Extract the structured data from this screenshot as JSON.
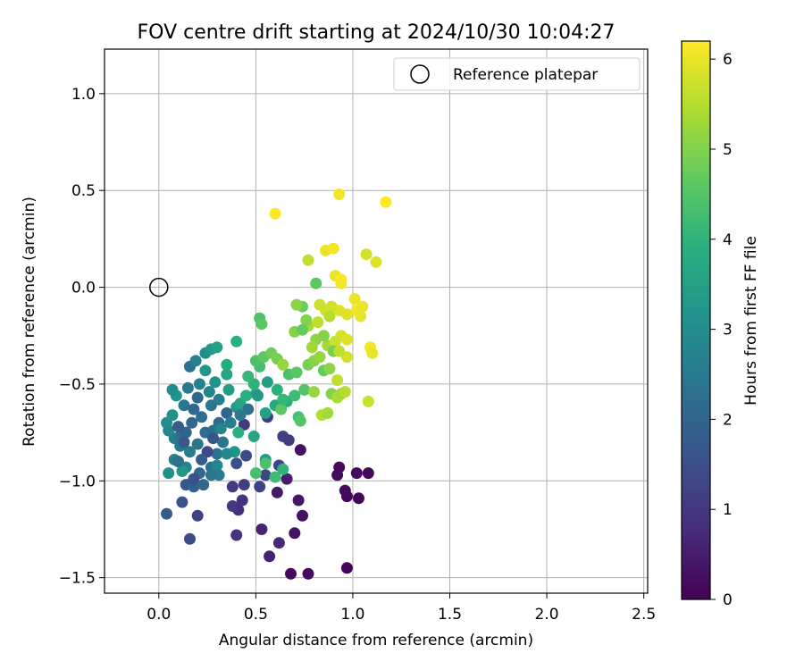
{
  "chart_data": {
    "type": "scatter",
    "title": "FOV centre drift starting at 2024/10/30 10:04:27",
    "xlabel": "Angular distance from reference (arcmin)",
    "ylabel": "Rotation from reference (arcmin)",
    "xlim": [
      -0.28,
      2.52
    ],
    "ylim": [
      -1.58,
      1.23
    ],
    "x_ticks": [
      0.0,
      0.5,
      1.0,
      1.5,
      2.0,
      2.5
    ],
    "x_tick_labels": [
      "0.0",
      "0.5",
      "1.0",
      "1.5",
      "2.0",
      "2.5"
    ],
    "y_ticks": [
      -1.5,
      -1.0,
      -0.5,
      0.0,
      0.5,
      1.0
    ],
    "y_tick_labels": [
      "−1.5",
      "−1.0",
      "−0.5",
      "0.0",
      "0.5",
      "1.0"
    ],
    "grid": true,
    "legend": {
      "placement": "top-right",
      "entries": [
        {
          "label": "Reference platepar",
          "marker": "open-circle",
          "x": 0.0,
          "y": 0.0
        }
      ]
    },
    "colorbar": {
      "label": "Hours from first FF file",
      "range": [
        0,
        6.2
      ],
      "ticks": [
        0,
        1,
        2,
        3,
        4,
        5,
        6
      ],
      "tick_labels": [
        "0",
        "1",
        "2",
        "3",
        "4",
        "5",
        "6"
      ],
      "colormap": "viridis"
    },
    "series": [
      {
        "color_by": "hours",
        "points": [
          [
            0.97,
            -1.45,
            0.05
          ],
          [
            0.68,
            -1.48,
            0.15
          ],
          [
            0.77,
            -1.48,
            0.2
          ],
          [
            0.7,
            -1.27,
            0.3
          ],
          [
            0.74,
            -1.18,
            0.3
          ],
          [
            0.72,
            -1.1,
            0.35
          ],
          [
            0.61,
            -1.06,
            0.4
          ],
          [
            0.97,
            -1.08,
            0.1
          ],
          [
            1.03,
            -1.09,
            0.1
          ],
          [
            0.96,
            -1.05,
            0.15
          ],
          [
            0.92,
            -0.97,
            0.2
          ],
          [
            0.93,
            -0.93,
            0.2
          ],
          [
            1.02,
            -0.96,
            0.15
          ],
          [
            1.08,
            -0.96,
            0.15
          ],
          [
            0.73,
            -0.84,
            0.3
          ],
          [
            0.66,
            -0.99,
            0.5
          ],
          [
            0.57,
            -1.39,
            0.6
          ],
          [
            0.53,
            -1.25,
            0.6
          ],
          [
            0.62,
            -1.32,
            0.7
          ],
          [
            0.4,
            -1.28,
            0.9
          ],
          [
            0.43,
            -1.1,
            0.9
          ],
          [
            0.41,
            -1.15,
            0.8
          ],
          [
            0.38,
            -1.13,
            1.0
          ],
          [
            0.38,
            -1.03,
            1.0
          ],
          [
            0.44,
            -1.02,
            1.1
          ],
          [
            0.52,
            -1.03,
            1.2
          ],
          [
            0.55,
            -0.97,
            1.3
          ],
          [
            0.62,
            -0.92,
            1.3
          ],
          [
            0.64,
            -0.77,
            1.2
          ],
          [
            0.67,
            -0.79,
            1.1
          ],
          [
            0.44,
            -0.71,
            1.0
          ],
          [
            0.56,
            -0.67,
            1.1
          ],
          [
            0.45,
            -0.87,
            1.4
          ],
          [
            0.4,
            -0.91,
            1.5
          ],
          [
            0.2,
            -1.18,
            1.2
          ],
          [
            0.16,
            -1.3,
            1.4
          ],
          [
            0.12,
            -1.11,
            1.6
          ],
          [
            0.04,
            -1.17,
            1.8
          ],
          [
            0.14,
            -1.02,
            1.7
          ],
          [
            0.18,
            -1.03,
            1.9
          ],
          [
            0.23,
            -1.02,
            2.0
          ],
          [
            0.21,
            -0.96,
            2.1
          ],
          [
            0.27,
            -0.93,
            2.2
          ],
          [
            0.3,
            -0.86,
            2.3
          ],
          [
            0.33,
            -0.8,
            2.4
          ],
          [
            0.28,
            -0.74,
            2.3
          ],
          [
            0.24,
            -0.75,
            2.2
          ],
          [
            0.2,
            -0.81,
            2.4
          ],
          [
            0.16,
            -0.85,
            2.6
          ],
          [
            0.11,
            -0.82,
            2.5
          ],
          [
            0.08,
            -0.78,
            2.6
          ],
          [
            0.05,
            -0.74,
            2.8
          ],
          [
            0.04,
            -0.7,
            3.0
          ],
          [
            0.07,
            -0.66,
            3.1
          ],
          [
            0.09,
            -0.56,
            3.2
          ],
          [
            0.07,
            -0.53,
            3.0
          ],
          [
            0.13,
            -0.61,
            2.4
          ],
          [
            0.18,
            -0.63,
            2.1
          ],
          [
            0.22,
            -0.67,
            2.2
          ],
          [
            0.27,
            -0.61,
            2.4
          ],
          [
            0.31,
            -0.58,
            2.6
          ],
          [
            0.26,
            -0.54,
            2.8
          ],
          [
            0.21,
            -0.5,
            2.7
          ],
          [
            0.15,
            -0.52,
            2.5
          ],
          [
            0.16,
            -0.41,
            2.3
          ],
          [
            0.19,
            -0.38,
            2.7
          ],
          [
            0.24,
            -0.34,
            3.0
          ],
          [
            0.27,
            -0.32,
            3.3
          ],
          [
            0.3,
            -0.31,
            3.5
          ],
          [
            0.24,
            -0.43,
            3.2
          ],
          [
            0.29,
            -0.49,
            3.1
          ],
          [
            0.35,
            -0.45,
            3.6
          ],
          [
            0.35,
            -0.4,
            3.8
          ],
          [
            0.4,
            -0.28,
            3.9
          ],
          [
            0.36,
            -0.53,
            3.4
          ],
          [
            0.4,
            -0.62,
            3.3
          ],
          [
            0.42,
            -0.6,
            3.6
          ],
          [
            0.45,
            -0.56,
            3.9
          ],
          [
            0.5,
            -0.55,
            3.7
          ],
          [
            0.49,
            -0.5,
            4.0
          ],
          [
            0.46,
            -0.46,
            4.1
          ],
          [
            0.52,
            -0.41,
            4.3
          ],
          [
            0.5,
            -0.38,
            4.4
          ],
          [
            0.54,
            -0.36,
            4.6
          ],
          [
            0.52,
            -0.16,
            4.4
          ],
          [
            0.53,
            -0.19,
            4.6
          ],
          [
            0.58,
            -0.34,
            4.8
          ],
          [
            0.61,
            -0.37,
            4.9
          ],
          [
            0.64,
            -0.4,
            5.2
          ],
          [
            0.67,
            -0.45,
            4.4
          ],
          [
            0.66,
            -0.59,
            3.8
          ],
          [
            0.6,
            -0.61,
            3.7
          ],
          [
            0.55,
            -0.65,
            3.5
          ],
          [
            0.49,
            -0.77,
            3.6
          ],
          [
            0.55,
            -0.89,
            3.4
          ],
          [
            0.41,
            -0.75,
            3.9
          ],
          [
            0.39,
            -0.85,
            3.2
          ],
          [
            0.35,
            -0.86,
            2.9
          ],
          [
            0.3,
            -0.92,
            2.8
          ],
          [
            0.31,
            -0.97,
            2.6
          ],
          [
            0.27,
            -0.97,
            2.4
          ],
          [
            0.14,
            -0.93,
            2.8
          ],
          [
            0.08,
            -0.89,
            2.7
          ],
          [
            0.05,
            -0.96,
            3.1
          ],
          [
            0.11,
            -0.77,
            2.3
          ],
          [
            0.17,
            -0.7,
            2.1
          ],
          [
            0.2,
            -0.57,
            2.0
          ],
          [
            0.31,
            -0.7,
            2.1
          ],
          [
            0.35,
            -0.65,
            2.0
          ],
          [
            0.12,
            -0.95,
            3.3
          ],
          [
            0.64,
            -0.94,
            4.0
          ],
          [
            0.6,
            -0.98,
            4.2
          ],
          [
            0.5,
            -0.96,
            4.3
          ],
          [
            0.55,
            -0.91,
            4.4
          ],
          [
            0.72,
            -0.67,
            4.3
          ],
          [
            0.73,
            -0.69,
            4.5
          ],
          [
            0.63,
            -0.63,
            4.6
          ],
          [
            0.7,
            -0.56,
            4.2
          ],
          [
            0.75,
            -0.53,
            4.5
          ],
          [
            0.71,
            -0.44,
            4.6
          ],
          [
            0.77,
            -0.4,
            4.9
          ],
          [
            0.8,
            -0.38,
            5.0
          ],
          [
            0.85,
            -0.43,
            4.7
          ],
          [
            0.88,
            -0.42,
            5.1
          ],
          [
            0.84,
            -0.66,
            5.5
          ],
          [
            0.87,
            -0.65,
            5.3
          ],
          [
            0.8,
            -0.54,
            5.2
          ],
          [
            0.89,
            -0.55,
            5.0
          ],
          [
            0.92,
            -0.57,
            5.4
          ],
          [
            0.94,
            -0.55,
            5.3
          ],
          [
            0.96,
            -0.54,
            5.5
          ],
          [
            0.92,
            -0.48,
            5.6
          ],
          [
            0.83,
            -0.36,
            5.2
          ],
          [
            0.87,
            -0.3,
            5.3
          ],
          [
            0.91,
            -0.28,
            5.7
          ],
          [
            0.94,
            -0.25,
            5.8
          ],
          [
            0.97,
            -0.27,
            5.9
          ],
          [
            0.9,
            -0.33,
            4.9
          ],
          [
            0.85,
            -0.25,
            5.0
          ],
          [
            0.81,
            -0.27,
            5.1
          ],
          [
            0.79,
            -0.31,
            5.3
          ],
          [
            0.77,
            -0.2,
            5.4
          ],
          [
            0.76,
            -0.17,
            5.0
          ],
          [
            0.74,
            -0.1,
            4.8
          ],
          [
            0.71,
            -0.09,
            5.1
          ],
          [
            0.7,
            -0.23,
            5.0
          ],
          [
            0.74,
            -0.22,
            4.7
          ],
          [
            0.81,
            0.02,
            4.6
          ],
          [
            0.77,
            0.14,
            5.6
          ],
          [
            0.86,
            0.19,
            6.0
          ],
          [
            0.9,
            0.2,
            6.1
          ],
          [
            0.91,
            0.06,
            6.0
          ],
          [
            0.94,
            0.04,
            6.2
          ],
          [
            0.94,
            0.02,
            6.1
          ],
          [
            1.01,
            -0.06,
            6.0
          ],
          [
            1.02,
            -0.12,
            6.1
          ],
          [
            1.05,
            -0.1,
            6.0
          ],
          [
            1.04,
            -0.15,
            6.0
          ],
          [
            0.97,
            -0.14,
            5.9
          ],
          [
            0.93,
            -0.12,
            5.9
          ],
          [
            0.89,
            -0.1,
            5.8
          ],
          [
            0.86,
            -0.12,
            5.8
          ],
          [
            0.83,
            -0.09,
            5.7
          ],
          [
            0.88,
            -0.15,
            5.5
          ],
          [
            0.82,
            -0.18,
            5.6
          ],
          [
            1.09,
            -0.31,
            6.1
          ],
          [
            1.1,
            -0.34,
            6.0
          ],
          [
            1.08,
            -0.59,
            5.7
          ],
          [
            0.97,
            -0.36,
            5.8
          ],
          [
            0.93,
            -0.33,
            5.6
          ],
          [
            1.07,
            0.17,
            5.8
          ],
          [
            1.12,
            0.13,
            5.9
          ],
          [
            0.6,
            0.38,
            6.2
          ],
          [
            0.93,
            0.48,
            6.1
          ],
          [
            1.17,
            0.44,
            6.2
          ],
          [
            0.51,
            -0.56,
            3.3
          ],
          [
            0.56,
            -0.49,
            3.5
          ],
          [
            0.61,
            -0.53,
            3.9
          ],
          [
            0.64,
            -0.58,
            4.1
          ],
          [
            0.46,
            -0.63,
            2.3
          ],
          [
            0.42,
            -0.66,
            2.5
          ],
          [
            0.37,
            -0.7,
            2.6
          ],
          [
            0.32,
            -0.73,
            2.8
          ],
          [
            0.28,
            -0.78,
            1.6
          ],
          [
            0.25,
            -0.85,
            1.4
          ],
          [
            0.22,
            -0.89,
            1.8
          ],
          [
            0.18,
            -0.99,
            1.5
          ],
          [
            0.1,
            -0.9,
            2.3
          ],
          [
            0.14,
            -0.75,
            2.0
          ],
          [
            0.1,
            -0.72,
            1.8
          ],
          [
            0.13,
            -0.8,
            1.7
          ]
        ]
      }
    ]
  }
}
